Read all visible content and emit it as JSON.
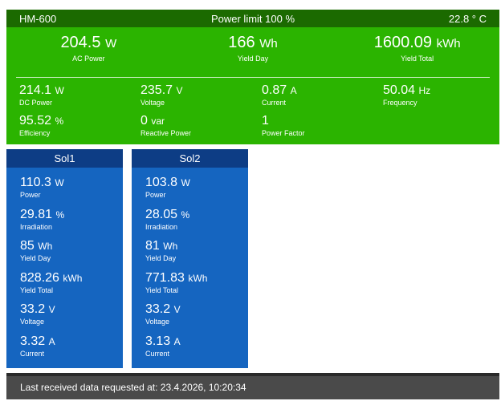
{
  "inverter": {
    "name": "HM-600",
    "power_limit": "Power limit 100 %",
    "temperature": "22.8 ° C",
    "top": [
      {
        "value": "204.5",
        "unit": "W",
        "label": "AC Power"
      },
      {
        "value": "166",
        "unit": "Wh",
        "label": "Yield Day"
      },
      {
        "value": "1600.09",
        "unit": "kWh",
        "label": "Yield Total"
      }
    ],
    "metrics": [
      {
        "value": "214.1",
        "unit": "W",
        "label": "DC Power"
      },
      {
        "value": "235.7",
        "unit": "V",
        "label": "Voltage"
      },
      {
        "value": "0.87",
        "unit": "A",
        "label": "Current"
      },
      {
        "value": "50.04",
        "unit": "Hz",
        "label": "Frequency"
      },
      {
        "value": "95.52",
        "unit": "%",
        "label": "Efficiency"
      },
      {
        "value": "0",
        "unit": "var",
        "label": "Reactive Power"
      },
      {
        "value": "1",
        "unit": "",
        "label": "Power Factor"
      }
    ]
  },
  "strings": [
    {
      "name": "Sol1",
      "items": [
        {
          "value": "110.3",
          "unit": "W",
          "label": "Power"
        },
        {
          "value": "29.81",
          "unit": "%",
          "label": "Irradiation"
        },
        {
          "value": "85",
          "unit": "Wh",
          "label": "Yield Day"
        },
        {
          "value": "828.26",
          "unit": "kWh",
          "label": "Yield Total"
        },
        {
          "value": "33.2",
          "unit": "V",
          "label": "Voltage"
        },
        {
          "value": "3.32",
          "unit": "A",
          "label": "Current"
        }
      ]
    },
    {
      "name": "Sol2",
      "items": [
        {
          "value": "103.8",
          "unit": "W",
          "label": "Power"
        },
        {
          "value": "28.05",
          "unit": "%",
          "label": "Irradiation"
        },
        {
          "value": "81",
          "unit": "Wh",
          "label": "Yield Day"
        },
        {
          "value": "771.83",
          "unit": "kWh",
          "label": "Yield Total"
        },
        {
          "value": "33.2",
          "unit": "V",
          "label": "Voltage"
        },
        {
          "value": "3.13",
          "unit": "A",
          "label": "Current"
        }
      ]
    }
  ],
  "footer": {
    "text": "Last received data requested at: 23.4.2026, 10:20:34"
  },
  "colors": {
    "inverter_bg": "#2bb400",
    "inverter_header": "#1b6a00",
    "string_bg": "#1565c0",
    "string_header": "#0d3d85",
    "footer_bg": "#4a4a4a"
  }
}
